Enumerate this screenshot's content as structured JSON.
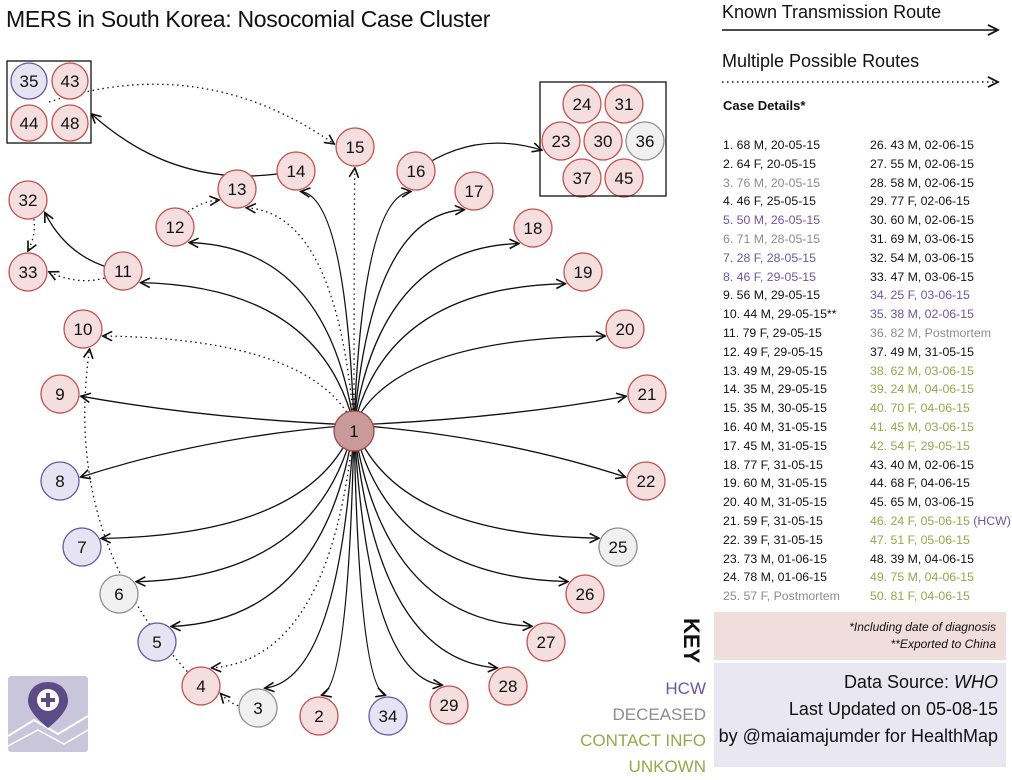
{
  "title": "MERS in South Korea: Nosocomial Case Cluster",
  "colors": {
    "case_fill": "#f4dede",
    "case_stroke": "#c2514e",
    "hcw_fill": "#e6e3f2",
    "hcw_stroke": "#6a58a0",
    "deceased_fill": "#f0f0f0",
    "deceased_stroke": "#8f8f8f",
    "index_fill": "#c99a9a",
    "index_stroke": "#a04848",
    "hcw_text": "#6a58a0",
    "deceased_text": "#8c8c8c",
    "unknown_text": "#93a84b"
  },
  "routes": {
    "known_label": "Known Transmission Route",
    "multiple_label": "Multiple Possible Routes"
  },
  "details_title": "Case Details*",
  "case_details_left": [
    {
      "text": "1. 68 M, 20-05-15",
      "cat": "normal"
    },
    {
      "text": "2. 64 F, 20-05-15",
      "cat": "normal"
    },
    {
      "text": "3. 76 M, 20-05-15",
      "cat": "deceased"
    },
    {
      "text": "4. 46 F, 25-05-15",
      "cat": "normal"
    },
    {
      "text": "5. 50 M, 26-05-15",
      "cat": "hcw"
    },
    {
      "text": "6. 71 M, 28-05-15",
      "cat": "deceased"
    },
    {
      "text": "7. 28 F, 28-05-15",
      "cat": "hcw"
    },
    {
      "text": "8. 46 F, 29-05-15",
      "cat": "hcw"
    },
    {
      "text": "9. 56 M, 29-05-15",
      "cat": "normal"
    },
    {
      "text": "10. 44 M, 29-05-15**",
      "cat": "normal"
    },
    {
      "text": "11. 79 F, 29-05-15",
      "cat": "normal"
    },
    {
      "text": "12. 49 F, 29-05-15",
      "cat": "normal"
    },
    {
      "text": "13. 49 M, 29-05-15",
      "cat": "normal"
    },
    {
      "text": "14. 35 M, 29-05-15",
      "cat": "normal"
    },
    {
      "text": "15. 35 M, 30-05-15",
      "cat": "normal"
    },
    {
      "text": "16. 40 M, 31-05-15",
      "cat": "normal"
    },
    {
      "text": "17. 45 M, 31-05-15",
      "cat": "normal"
    },
    {
      "text": "18. 77 F, 31-05-15",
      "cat": "normal"
    },
    {
      "text": "19. 60 M, 31-05-15",
      "cat": "normal"
    },
    {
      "text": "20. 40 M, 31-05-15",
      "cat": "normal"
    },
    {
      "text": "21. 59 F, 31-05-15",
      "cat": "normal"
    },
    {
      "text": "22. 39 F, 31-05-15",
      "cat": "normal"
    },
    {
      "text": "23. 73 M, 01-06-15",
      "cat": "normal"
    },
    {
      "text": "24. 78 M, 01-06-15",
      "cat": "normal"
    },
    {
      "text": "25. 57 F, Postmortem",
      "cat": "deceased"
    }
  ],
  "case_details_right": [
    {
      "text": "26. 43 M, 02-06-15",
      "cat": "normal"
    },
    {
      "text": "27. 55 M, 02-06-15",
      "cat": "normal"
    },
    {
      "text": "28. 58 M, 02-06-15",
      "cat": "normal"
    },
    {
      "text": "29. 77 F, 02-06-15",
      "cat": "normal"
    },
    {
      "text": "30. 60 M, 02-06-15",
      "cat": "normal"
    },
    {
      "text": "31. 69 M, 03-06-15",
      "cat": "normal"
    },
    {
      "text": "32. 54 M, 03-06-15",
      "cat": "normal"
    },
    {
      "text": "33. 47 M, 03-06-15",
      "cat": "normal"
    },
    {
      "text": "34. 25 F, 03-06-15",
      "cat": "hcw"
    },
    {
      "text": "35. 38 M, 02-06-15",
      "cat": "hcw"
    },
    {
      "text": "36. 82 M, Postmortem",
      "cat": "deceased"
    },
    {
      "text": "37. 49 M, 31-05-15",
      "cat": "normal"
    },
    {
      "text": "38. 62 M, 03-06-15",
      "cat": "unknown"
    },
    {
      "text": "39. 24 M, 04-06-15",
      "cat": "unknown"
    },
    {
      "text": "40. 70 F, 04-06-15",
      "cat": "unknown"
    },
    {
      "text": "41. 45 M, 03-06-15",
      "cat": "unknown"
    },
    {
      "text": "42. 54 F, 29-05-15",
      "cat": "unknown"
    },
    {
      "text": "43. 40 M, 02-06-15",
      "cat": "normal"
    },
    {
      "text": "44. 68 F, 04-06-15",
      "cat": "normal"
    },
    {
      "text": "45. 65 M, 03-06-15",
      "cat": "normal"
    },
    {
      "text": "46. 24 F, 05-06-15",
      "cat": "unknown",
      "tag": "(HCW)"
    },
    {
      "text": "47. 51 F, 05-06-15",
      "cat": "unknown"
    },
    {
      "text": "48. 39 M, 04-06-15",
      "cat": "normal"
    },
    {
      "text": "49. 75 M, 04-06-15",
      "cat": "unknown"
    },
    {
      "text": "50. 81 F, 04-06-15",
      "cat": "unknown"
    }
  ],
  "notes": {
    "line1": "*Including date of diagnosis",
    "line2": "**Exported to China"
  },
  "key": {
    "label": "KEY",
    "hcw": "HCW",
    "deceased": "DECEASED",
    "unknown": "CONTACT INFO UNKOWN"
  },
  "credits": {
    "source_prefix": "Data Source: ",
    "source": "WHO",
    "updated": "Last Updated on 05-08-15",
    "by": "by @maiamajumder for HealthMap"
  },
  "logo_icon": "map-pin-plus-icon",
  "nodes": [
    {
      "id": "1",
      "cat": "index"
    },
    {
      "id": "2",
      "cat": "normal"
    },
    {
      "id": "3",
      "cat": "deceased"
    },
    {
      "id": "4",
      "cat": "normal"
    },
    {
      "id": "5",
      "cat": "hcw"
    },
    {
      "id": "6",
      "cat": "deceased"
    },
    {
      "id": "7",
      "cat": "hcw"
    },
    {
      "id": "8",
      "cat": "hcw"
    },
    {
      "id": "9",
      "cat": "normal"
    },
    {
      "id": "10",
      "cat": "normal"
    },
    {
      "id": "11",
      "cat": "normal"
    },
    {
      "id": "12",
      "cat": "normal"
    },
    {
      "id": "13",
      "cat": "normal"
    },
    {
      "id": "14",
      "cat": "normal"
    },
    {
      "id": "15",
      "cat": "normal"
    },
    {
      "id": "16",
      "cat": "normal"
    },
    {
      "id": "17",
      "cat": "normal"
    },
    {
      "id": "18",
      "cat": "normal"
    },
    {
      "id": "19",
      "cat": "normal"
    },
    {
      "id": "20",
      "cat": "normal"
    },
    {
      "id": "21",
      "cat": "normal"
    },
    {
      "id": "22",
      "cat": "normal"
    },
    {
      "id": "25",
      "cat": "deceased"
    },
    {
      "id": "26",
      "cat": "normal"
    },
    {
      "id": "27",
      "cat": "normal"
    },
    {
      "id": "28",
      "cat": "normal"
    },
    {
      "id": "29",
      "cat": "normal"
    },
    {
      "id": "34",
      "cat": "hcw"
    },
    {
      "id": "32",
      "cat": "normal"
    },
    {
      "id": "33",
      "cat": "normal"
    },
    {
      "id": "35",
      "cat": "hcw"
    },
    {
      "id": "43",
      "cat": "normal"
    },
    {
      "id": "44",
      "cat": "normal"
    },
    {
      "id": "48",
      "cat": "normal"
    },
    {
      "id": "24",
      "cat": "normal"
    },
    {
      "id": "31",
      "cat": "normal"
    },
    {
      "id": "23",
      "cat": "normal"
    },
    {
      "id": "30",
      "cat": "normal"
    },
    {
      "id": "36",
      "cat": "deceased"
    },
    {
      "id": "37",
      "cat": "normal"
    },
    {
      "id": "45",
      "cat": "normal"
    }
  ],
  "edges_known": [
    [
      "1",
      "2"
    ],
    [
      "1",
      "3"
    ],
    [
      "1",
      "5"
    ],
    [
      "1",
      "6"
    ],
    [
      "1",
      "7"
    ],
    [
      "1",
      "8"
    ],
    [
      "1",
      "9"
    ],
    [
      "1",
      "11"
    ],
    [
      "1",
      "12"
    ],
    [
      "1",
      "14"
    ],
    [
      "1",
      "16"
    ],
    [
      "1",
      "17"
    ],
    [
      "1",
      "18"
    ],
    [
      "1",
      "19"
    ],
    [
      "1",
      "20"
    ],
    [
      "1",
      "21"
    ],
    [
      "1",
      "22"
    ],
    [
      "1",
      "25"
    ],
    [
      "1",
      "26"
    ],
    [
      "1",
      "27"
    ],
    [
      "1",
      "28"
    ],
    [
      "1",
      "29"
    ],
    [
      "1",
      "34"
    ],
    [
      "11",
      "32"
    ],
    [
      "14",
      "cluster-a"
    ],
    [
      "16",
      "cluster-b"
    ]
  ],
  "edges_multiple": [
    [
      "1",
      "4"
    ],
    [
      "1",
      "10"
    ],
    [
      "1",
      "13"
    ],
    [
      "1",
      "15"
    ],
    [
      "3",
      "4"
    ],
    [
      "4",
      "10"
    ],
    [
      "11",
      "33"
    ],
    [
      "12",
      "13"
    ],
    [
      "32",
      "33"
    ],
    [
      "cluster-a",
      "15"
    ]
  ]
}
